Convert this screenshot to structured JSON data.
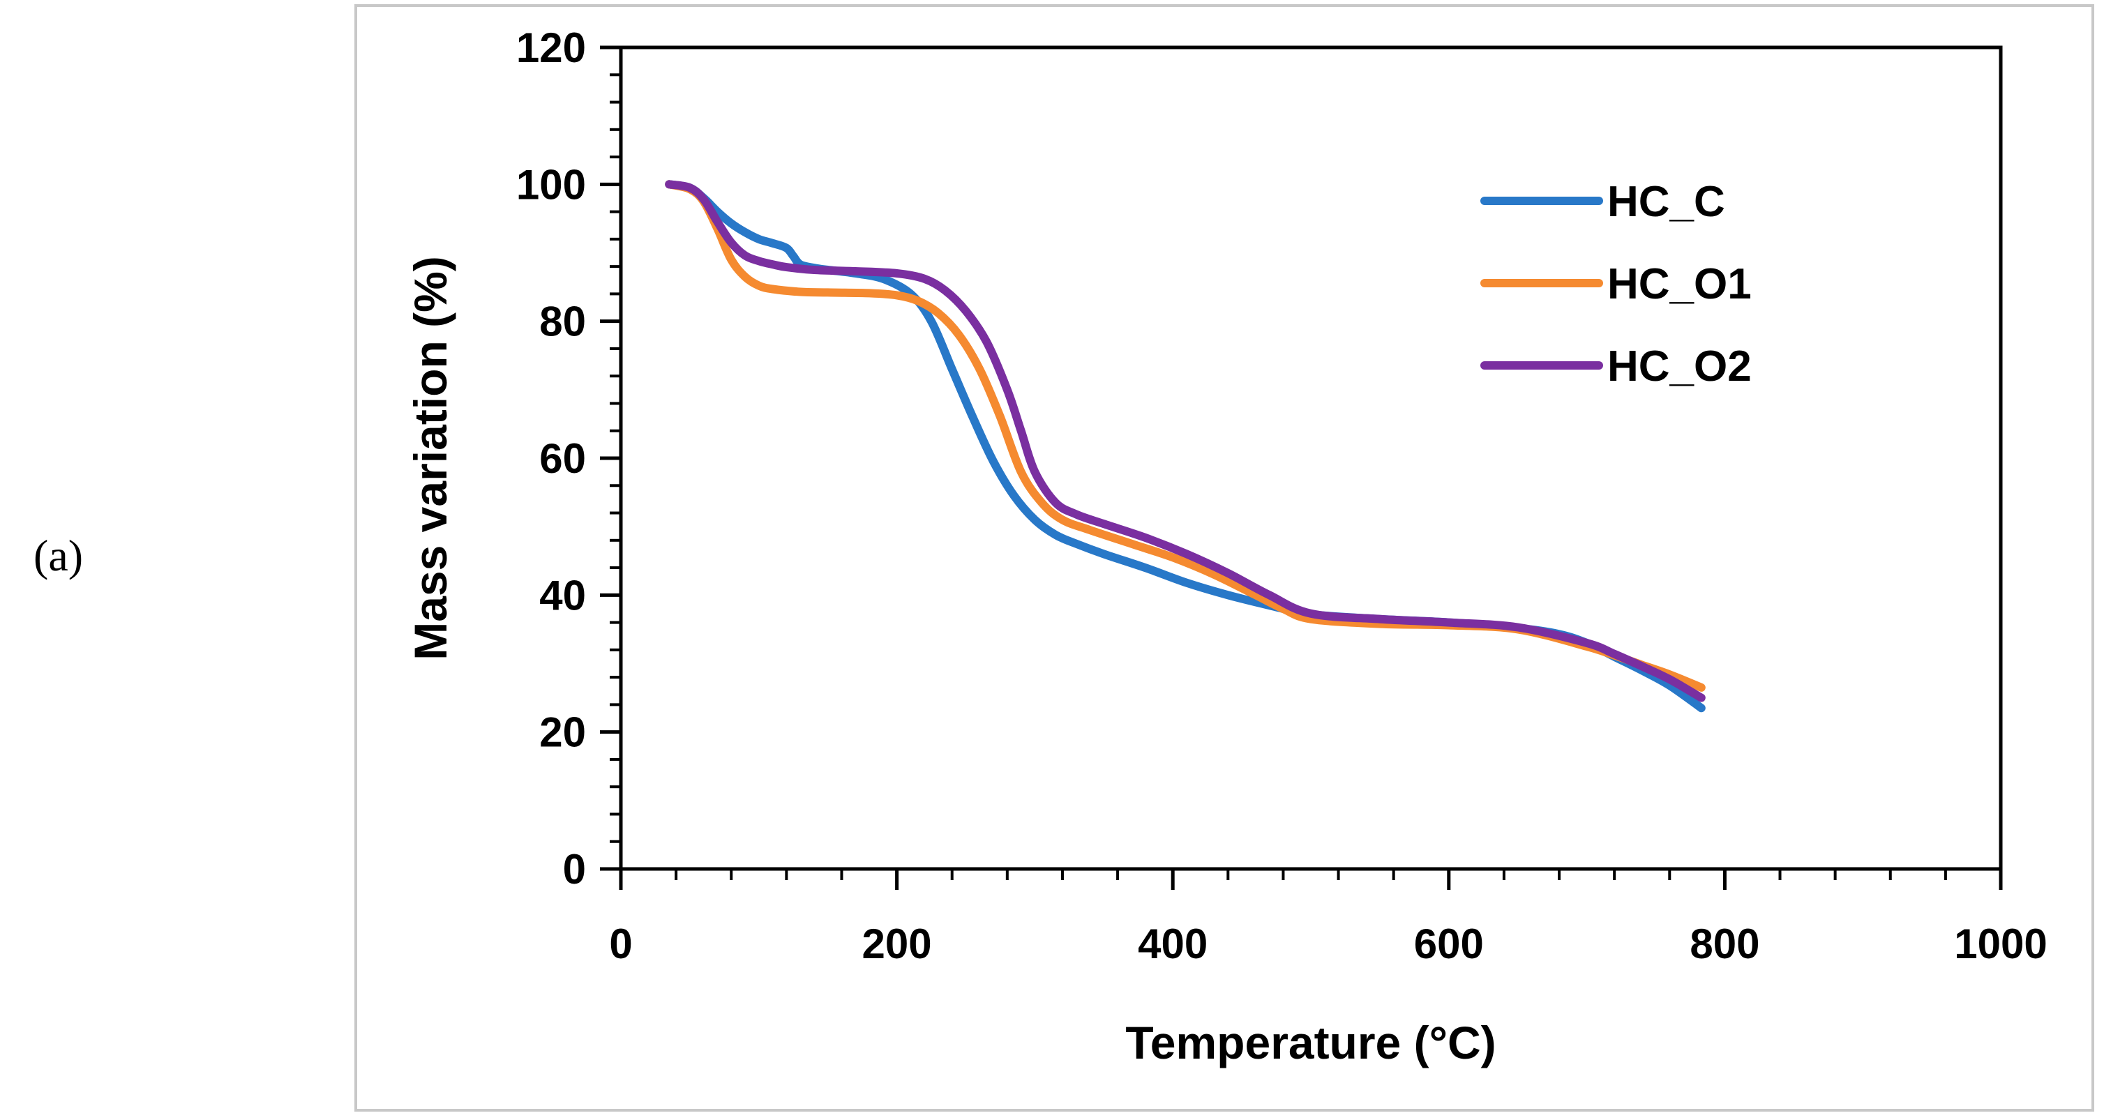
{
  "panel_label": "(a)",
  "chart_data": {
    "type": "line",
    "title": "",
    "xlabel": "Temperature (°C)",
    "ylabel": "Mass variation (%)",
    "xlim": [
      0,
      1000
    ],
    "ylim": [
      0,
      120
    ],
    "xticks": [
      0,
      200,
      400,
      600,
      800,
      1000
    ],
    "yticks": [
      0,
      20,
      40,
      60,
      80,
      100,
      120
    ],
    "x_minor_step": 40,
    "y_minor_step": 4,
    "grid": false,
    "legend_position": "top-right",
    "series": [
      {
        "name": "HC_C",
        "color": "#2878c8",
        "x": [
          35,
          50,
          60,
          70,
          80,
          90,
          100,
          110,
          120,
          125,
          130,
          140,
          150,
          170,
          190,
          210,
          225,
          240,
          255,
          270,
          285,
          300,
          315,
          330,
          350,
          380,
          410,
          440,
          470,
          500,
          550,
          600,
          650,
          680,
          700,
          720,
          740,
          760,
          783
        ],
        "y": [
          100,
          99.5,
          98,
          96,
          94.3,
          93,
          92,
          91.4,
          90.7,
          89.5,
          88.3,
          87.8,
          87.5,
          87,
          86.2,
          84,
          80,
          73,
          66,
          59.5,
          54.5,
          51,
          48.8,
          47.5,
          46,
          44,
          41.8,
          40,
          38.5,
          37.2,
          36.5,
          36,
          35.2,
          34.3,
          33,
          31,
          29,
          26.8,
          23.5
        ]
      },
      {
        "name": "HC_O1",
        "color": "#f58a30",
        "x": [
          35,
          50,
          60,
          70,
          80,
          90,
          100,
          110,
          130,
          150,
          180,
          200,
          215,
          230,
          245,
          260,
          275,
          290,
          305,
          320,
          340,
          370,
          400,
          430,
          460,
          480,
          500,
          550,
          600,
          650,
          700,
          720,
          740,
          760,
          783
        ],
        "y": [
          100,
          99.3,
          97.5,
          93.5,
          89,
          86.5,
          85.2,
          84.7,
          84.3,
          84.2,
          84.1,
          83.8,
          83,
          81.2,
          78,
          73,
          66,
          58,
          53.5,
          51,
          49.5,
          47.5,
          45.5,
          43,
          40,
          38,
          36.5,
          35.8,
          35.6,
          35,
          32.5,
          31.2,
          29.8,
          28.4,
          26.5
        ]
      },
      {
        "name": "HC_O2",
        "color": "#7a2fa0",
        "x": [
          35,
          50,
          60,
          70,
          80,
          90,
          100,
          110,
          120,
          140,
          170,
          200,
          220,
          235,
          250,
          265,
          280,
          290,
          300,
          315,
          330,
          350,
          380,
          410,
          440,
          470,
          500,
          550,
          600,
          650,
          700,
          720,
          740,
          760,
          783
        ],
        "y": [
          100,
          99.5,
          97.8,
          94.5,
          91.5,
          89.6,
          88.8,
          88.3,
          87.9,
          87.5,
          87.3,
          87,
          86.2,
          84.5,
          81.5,
          77,
          70,
          64,
          58,
          53.5,
          51.8,
          50.4,
          48.4,
          46,
          43.2,
          40,
          37.3,
          36.5,
          36,
          35.3,
          33,
          31.4,
          29.6,
          27.7,
          25
        ]
      }
    ]
  }
}
